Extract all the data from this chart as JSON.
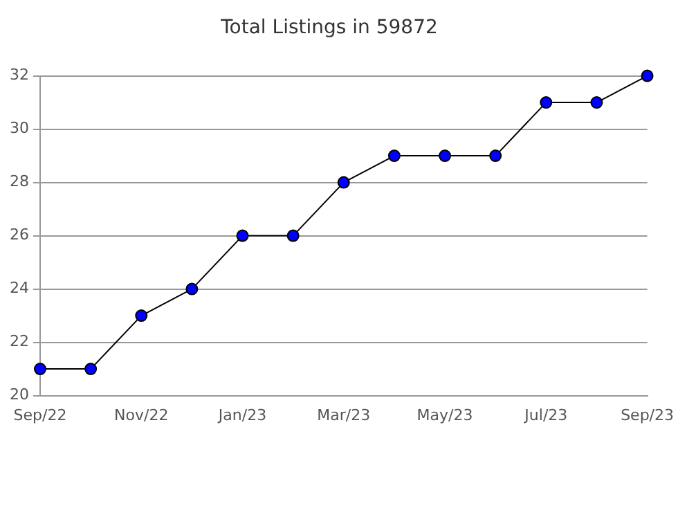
{
  "chart_data": {
    "type": "line",
    "title": "Total Listings in 59872",
    "categories": [
      "Sep/22",
      null,
      "Nov/22",
      null,
      "Jan/23",
      null,
      "Mar/23",
      null,
      "May/23",
      null,
      "Jul/23",
      null,
      "Sep/23"
    ],
    "series": [
      {
        "color": "#0000ff",
        "values": [
          21,
          21,
          23,
          24,
          26,
          26,
          28,
          29,
          29,
          29,
          31,
          31,
          32
        ]
      }
    ],
    "ylim": [
      20,
      32
    ],
    "yticks": [
      20,
      22,
      24,
      26,
      28,
      30,
      32
    ],
    "grid": "y",
    "marker": "circle",
    "line_style": "solid",
    "legend": false
  }
}
